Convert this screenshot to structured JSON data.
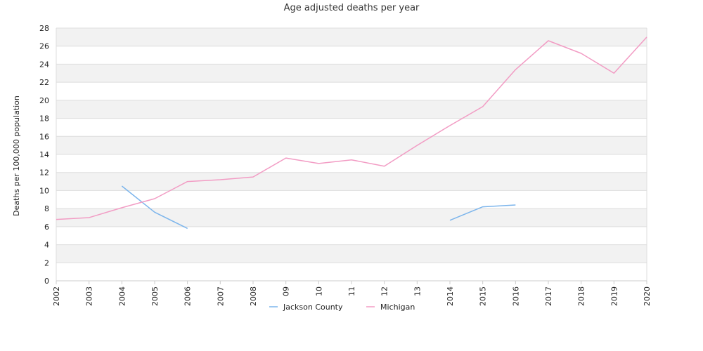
{
  "chart_data": {
    "type": "line",
    "title": "Age adjusted deaths per year",
    "xlabel": "",
    "ylabel": "Deaths per 100,000 population",
    "ylim": [
      0,
      28
    ],
    "yticks": [
      0,
      2,
      4,
      6,
      8,
      10,
      12,
      14,
      16,
      18,
      20,
      22,
      24,
      26,
      28
    ],
    "categories": [
      "2002",
      "2003",
      "2004",
      "2005",
      "2006",
      "2007",
      "2008",
      "09",
      "10",
      "11",
      "12",
      "13",
      "2014",
      "2015",
      "2016",
      "2017",
      "2018",
      "2019",
      "2020"
    ],
    "series": [
      {
        "name": "Jackson County",
        "color": "#7cb5ec",
        "values": [
          null,
          null,
          10.5,
          7.6,
          5.8,
          null,
          null,
          null,
          null,
          null,
          null,
          null,
          6.7,
          8.2,
          8.4,
          null,
          null,
          null,
          null
        ]
      },
      {
        "name": "Michigan",
        "color": "#f29cc4",
        "values": [
          6.8,
          7.0,
          8.1,
          9.1,
          11.0,
          11.2,
          11.5,
          13.6,
          13.0,
          13.4,
          12.7,
          15.0,
          17.2,
          19.3,
          23.4,
          26.6,
          25.2,
          23.0,
          27.0
        ]
      }
    ],
    "grid": true,
    "band_colors": [
      "#f2f2f2",
      "#ffffff"
    ],
    "legend_position": "bottom-center"
  }
}
